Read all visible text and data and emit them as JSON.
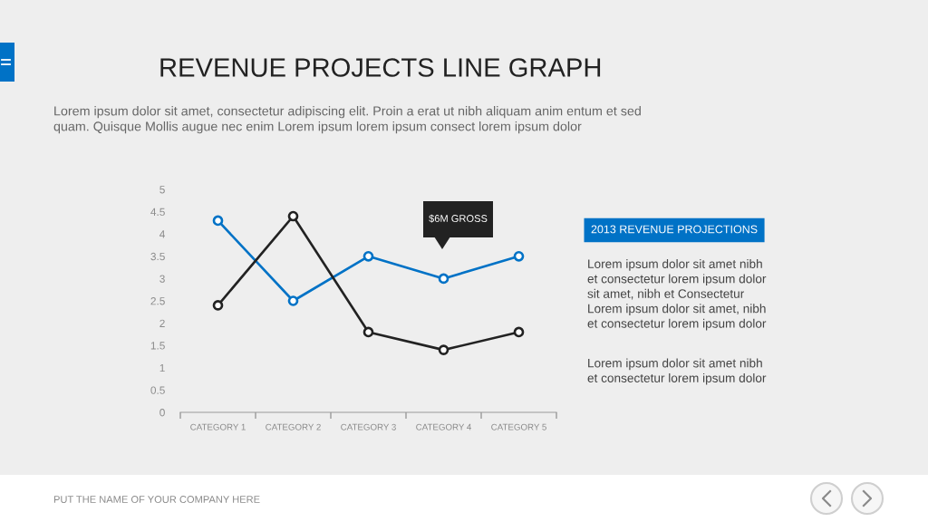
{
  "chart_data": [
    {
      "type": "line",
      "title": "REVENUE PROJECTS LINE GRAPH",
      "subtitle": "Lorem ipsum dolor sit amet, consectetur adipiscing elit. Proin a erat ut nibh aliquam anim entum et sed\nquam. Quisque Mollis augue nec enim Lorem ipsum lorem ipsum consect lorem ipsum dolor",
      "categories": [
        "CATEGORY 1",
        "CATEGORY 2",
        "CATEGORY 3",
        "CATEGORY 4",
        "CATEGORY 5"
      ],
      "series": [
        {
          "color": "#0072c6",
          "values": [
            4.3,
            2.5,
            3.5,
            3,
            3.5
          ]
        },
        {
          "color": "#222222",
          "values": [
            2.4,
            4.4,
            1.8,
            1.4,
            1.8
          ]
        }
      ],
      "ylim": [
        0,
        5
      ],
      "yticks": [
        0,
        0.5,
        1,
        1.5,
        2,
        2.5,
        3,
        3.5,
        4,
        4.5,
        5
      ],
      "marker": "circle",
      "annotations": [
        "$6M GROSS",
        "PUT THE NAME OF YOUR COMPANY HERE"
      ]
    },
    {
      "type": "other",
      "title": "2013 REVENUE PROJECTIONS",
      "annotations": [
        "Lorem ipsum dolor sit amet nibh\net consectetur lorem ipsum dolor\nsit amet, nibh et Consectetur\nLorem ipsum dolor sit amet, nibh\net consectetur lorem ipsum dolor",
        "Lorem ipsum dolor sit amet nibh\net consectetur lorem ipsum dolor"
      ]
    }
  ]
}
